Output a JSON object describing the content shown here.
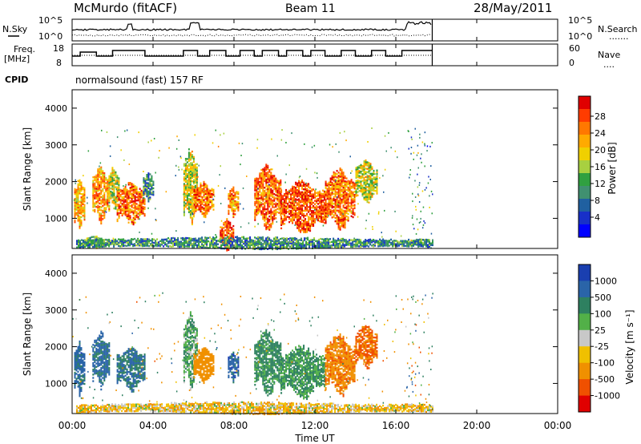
{
  "header": {
    "station": "McMurdo (fitACF)",
    "beam": "Beam 11",
    "date": "28/May/2011"
  },
  "left_labels": {
    "nsky": "N.Sky",
    "freq_line1": "Freq.",
    "freq_line2": "[MHz]",
    "cpid": "CPID"
  },
  "right_labels": {
    "nsearch": "N.Search",
    "nsearch_style": ".......",
    "nave": "Nave",
    "nave_style": "...."
  },
  "cpid_text": "normalsound (fast) 157 RF",
  "noise_axis": {
    "left_ticks": [
      "10^5",
      "10^0"
    ],
    "right_ticks": [
      "10^5",
      "10^0"
    ]
  },
  "freq_axis": {
    "left_ticks": [
      "18",
      "8"
    ],
    "right_ticks": [
      "60",
      "0"
    ]
  },
  "time_axis": {
    "ticks": [
      "00:00",
      "04:00",
      "08:00",
      "12:00",
      "16:00",
      "20:00",
      "00:00"
    ],
    "label": "Time UT"
  },
  "power_colorbar": {
    "label": "Power [dB]",
    "ticks": [
      "28",
      "24",
      "20",
      "16",
      "12",
      "8",
      "4"
    ],
    "colors": [
      "#e00000",
      "#ff3c00",
      "#ff7800",
      "#ffaa00",
      "#f0d000",
      "#a8d040",
      "#30a040",
      "#409070",
      "#2060a0",
      "#1830c8",
      "#0000ff"
    ]
  },
  "velocity_colorbar": {
    "label": "Velocity [m s⁻¹]",
    "ticks": [
      "1000",
      "500",
      "100",
      "25",
      "-25",
      "-100",
      "-500",
      "-1000"
    ],
    "colors": [
      "#1a3fb0",
      "#2a64a8",
      "#2e8060",
      "#52b048",
      "#c8c8c8",
      "#f0c000",
      "#f09000",
      "#f05000",
      "#e00000"
    ]
  },
  "chart_data": [
    {
      "type": "heatmap",
      "name": "power",
      "ylabel": "Slant Range [km]",
      "xlabel": "Time UT",
      "xlim": [
        0,
        24
      ],
      "ylim": [
        180,
        4500
      ],
      "yticks": [
        1000,
        2000,
        3000,
        4000
      ],
      "colorbar": {
        "label": "Power [dB]",
        "range": [
          0,
          32
        ]
      },
      "echo_regions": [
        {
          "t": [
            0.1,
            0.6
          ],
          "r": [
            800,
            2000
          ],
          "level": 22
        },
        {
          "t": [
            0.7,
            1.5
          ],
          "r": [
            200,
            500
          ],
          "level": 14
        },
        {
          "t": [
            1.0,
            1.8
          ],
          "r": [
            1000,
            2300
          ],
          "level": 24
        },
        {
          "t": [
            1.8,
            2.3
          ],
          "r": [
            1300,
            2300
          ],
          "level": 18
        },
        {
          "t": [
            2.2,
            3.6
          ],
          "r": [
            900,
            1900
          ],
          "level": 26
        },
        {
          "t": [
            3.5,
            4.0
          ],
          "r": [
            1500,
            2200
          ],
          "level": 10
        },
        {
          "t": [
            5.5,
            6.2
          ],
          "r": [
            1000,
            2800
          ],
          "level": 18
        },
        {
          "t": [
            6.0,
            7.0
          ],
          "r": [
            1100,
            1900
          ],
          "level": 26
        },
        {
          "t": [
            7.3,
            8.0
          ],
          "r": [
            180,
            900
          ],
          "level": 28
        },
        {
          "t": [
            7.7,
            8.2
          ],
          "r": [
            1100,
            1800
          ],
          "level": 24
        },
        {
          "t": [
            9.0,
            10.3
          ],
          "r": [
            800,
            2300
          ],
          "level": 27
        },
        {
          "t": [
            10.3,
            12.5
          ],
          "r": [
            700,
            1900
          ],
          "level": 28
        },
        {
          "t": [
            12.5,
            14.0
          ],
          "r": [
            800,
            2200
          ],
          "level": 26
        },
        {
          "t": [
            14.0,
            15.1
          ],
          "r": [
            1500,
            2500
          ],
          "level": 18
        },
        {
          "t": [
            0.2,
            17.8
          ],
          "r": [
            180,
            450
          ],
          "level": 10
        }
      ]
    },
    {
      "type": "heatmap",
      "name": "velocity",
      "ylabel": "Slant Range [km]",
      "xlabel": "Time UT",
      "xlim": [
        0,
        24
      ],
      "ylim": [
        180,
        4500
      ],
      "yticks": [
        1000,
        2000,
        3000,
        4000
      ],
      "colorbar": {
        "label": "Velocity [m s⁻¹]",
        "range": [
          -1000,
          1000
        ]
      },
      "echo_regions": [
        {
          "t": [
            0.1,
            0.6
          ],
          "r": [
            800,
            2000
          ],
          "level": 700
        },
        {
          "t": [
            1.0,
            1.8
          ],
          "r": [
            1000,
            2300
          ],
          "level": 600
        },
        {
          "t": [
            2.2,
            3.6
          ],
          "r": [
            900,
            1900
          ],
          "level": 500
        },
        {
          "t": [
            5.5,
            6.2
          ],
          "r": [
            1000,
            2800
          ],
          "level": 80
        },
        {
          "t": [
            6.0,
            7.0
          ],
          "r": [
            1100,
            1900
          ],
          "level": -250
        },
        {
          "t": [
            7.7,
            8.2
          ],
          "r": [
            1100,
            1800
          ],
          "level": 800
        },
        {
          "t": [
            9.0,
            10.3
          ],
          "r": [
            800,
            2300
          ],
          "level": 150
        },
        {
          "t": [
            10.3,
            12.5
          ],
          "r": [
            700,
            1900
          ],
          "level": 120
        },
        {
          "t": [
            12.5,
            14.0
          ],
          "r": [
            800,
            2200
          ],
          "level": -400
        },
        {
          "t": [
            14.0,
            15.1
          ],
          "r": [
            1500,
            2500
          ],
          "level": -550
        },
        {
          "t": [
            0.2,
            17.8
          ],
          "r": [
            180,
            450
          ],
          "level": -60
        }
      ]
    }
  ]
}
